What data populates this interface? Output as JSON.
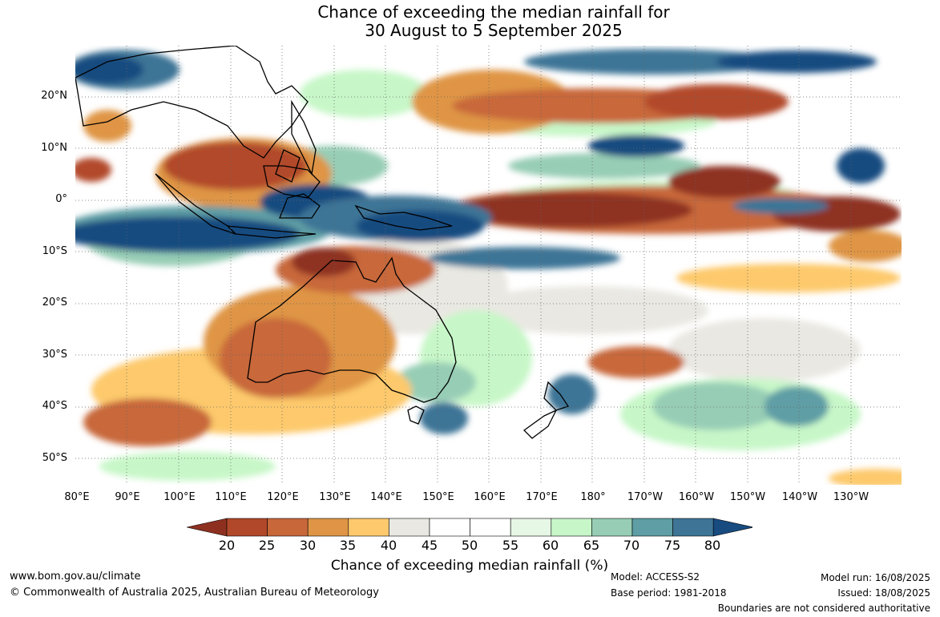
{
  "title_line1": "Chance of exceeding the median rainfall for",
  "title_line2": "30 August to 5 September 2025",
  "map": {
    "region": "Indian Ocean, Maritime Continent, Australia and western/central Pacific",
    "lat_labels": [
      "20°N",
      "10°N",
      "0°",
      "10°S",
      "20°S",
      "30°S",
      "40°S",
      "50°S"
    ],
    "lat_values": [
      20,
      10,
      0,
      -10,
      -20,
      -30,
      -40,
      -50
    ],
    "lon_labels": [
      "80°E",
      "90°E",
      "100°E",
      "110°E",
      "120°E",
      "130°E",
      "140°E",
      "150°E",
      "160°E",
      "170°E",
      "180°",
      "170°W",
      "160°W",
      "150°W",
      "140°W",
      "130°W"
    ],
    "lon_values": [
      80,
      90,
      100,
      110,
      120,
      130,
      140,
      150,
      160,
      170,
      180,
      190,
      200,
      210,
      220,
      230
    ],
    "lon_range": [
      80,
      240
    ],
    "lat_range": [
      -55,
      30
    ],
    "grid": true
  },
  "colorbar": {
    "ticks": [
      "20",
      "25",
      "30",
      "35",
      "40",
      "45",
      "50",
      "55",
      "60",
      "65",
      "70",
      "75",
      "80"
    ],
    "colors": [
      "#8e3020",
      "#b2482a",
      "#c8673a",
      "#df9545",
      "#fdc96c",
      "#e9e8e2",
      "#ffffff",
      "#ffffff",
      "#e7f7e5",
      "#c7f7c8",
      "#97cdb5",
      "#5f9ea5",
      "#3e7596",
      "#184b80"
    ],
    "label": "Chance of exceeding median rainfall (%)",
    "extend": "both"
  },
  "footer": {
    "website": "www.bom.gov.au/climate",
    "copyright": "© Commonwealth of Australia 2025, Australian Bureau of Meteorology",
    "model": "Model: ACCESS-S2",
    "base_period": "Base period: 1981-2018",
    "model_run": "Model run: 16/08/2025",
    "issued": "Issued: 18/08/2025",
    "disclaimer": "Boundaries are not considered authoritative"
  }
}
